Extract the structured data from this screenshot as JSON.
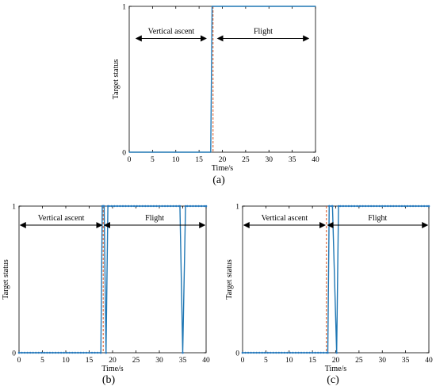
{
  "colors": {
    "series": "#1f77b4",
    "marker": "#2b7bbf",
    "dashed": "#d9541e",
    "axis": "#000000"
  },
  "chart_data": [
    {
      "type": "line",
      "caption": "(a)",
      "xlabel": "Time/s",
      "ylabel": "Target status",
      "xlim": [
        0,
        40
      ],
      "ylim": [
        0,
        1
      ],
      "xticks": [
        0,
        5,
        10,
        15,
        20,
        25,
        30,
        35,
        40
      ],
      "yticks": [
        0,
        1
      ],
      "dashed_x": 18,
      "markers": false,
      "series": [
        {
          "x": [
            0,
            17.5,
            17.8,
            40
          ],
          "y": [
            0,
            0,
            1,
            1
          ]
        }
      ],
      "annotations": [
        {
          "text": "Vertical ascent",
          "x_from": 1.5,
          "x_to": 16.5,
          "y": 0.78
        },
        {
          "text": "Flight",
          "x_from": 19,
          "x_to": 38.5,
          "y": 0.78
        }
      ]
    },
    {
      "type": "line",
      "caption": "(b)",
      "xlabel": "Time/s",
      "ylabel": "Target status",
      "xlim": [
        0,
        40
      ],
      "ylim": [
        0,
        1
      ],
      "xticks": [
        0,
        5,
        10,
        15,
        20,
        25,
        30,
        35,
        40
      ],
      "yticks": [
        0,
        1
      ],
      "dashed_x": 18,
      "markers": true,
      "series": [
        {
          "x": [
            0,
            17.5,
            17.8,
            18,
            18.2,
            18.6,
            19,
            34.4,
            35,
            35.6,
            40
          ],
          "y": [
            0,
            0,
            1,
            1,
            1,
            0,
            1,
            1,
            0,
            1,
            1
          ]
        }
      ],
      "annotations": [
        {
          "text": "Vertical ascent",
          "x_from": 0.3,
          "x_to": 17.7,
          "y": 0.87
        },
        {
          "text": "Flight",
          "x_from": 18.3,
          "x_to": 39.7,
          "y": 0.87
        }
      ]
    },
    {
      "type": "line",
      "caption": "(c)",
      "xlabel": "Time/s",
      "ylabel": "Target status",
      "xlim": [
        0,
        40
      ],
      "ylim": [
        0,
        1
      ],
      "xticks": [
        0,
        5,
        10,
        15,
        20,
        25,
        30,
        35,
        40
      ],
      "yticks": [
        0,
        1
      ],
      "dashed_x": 18,
      "markers": true,
      "series": [
        {
          "x": [
            0,
            18.3,
            18.6,
            19.3,
            20.2,
            20.6,
            40
          ],
          "y": [
            0,
            0,
            1,
            1,
            0,
            1,
            1
          ]
        }
      ],
      "annotations": [
        {
          "text": "Vertical ascent",
          "x_from": 0.3,
          "x_to": 17.7,
          "y": 0.87
        },
        {
          "text": "Flight",
          "x_from": 18.3,
          "x_to": 39.7,
          "y": 0.87
        }
      ]
    }
  ]
}
